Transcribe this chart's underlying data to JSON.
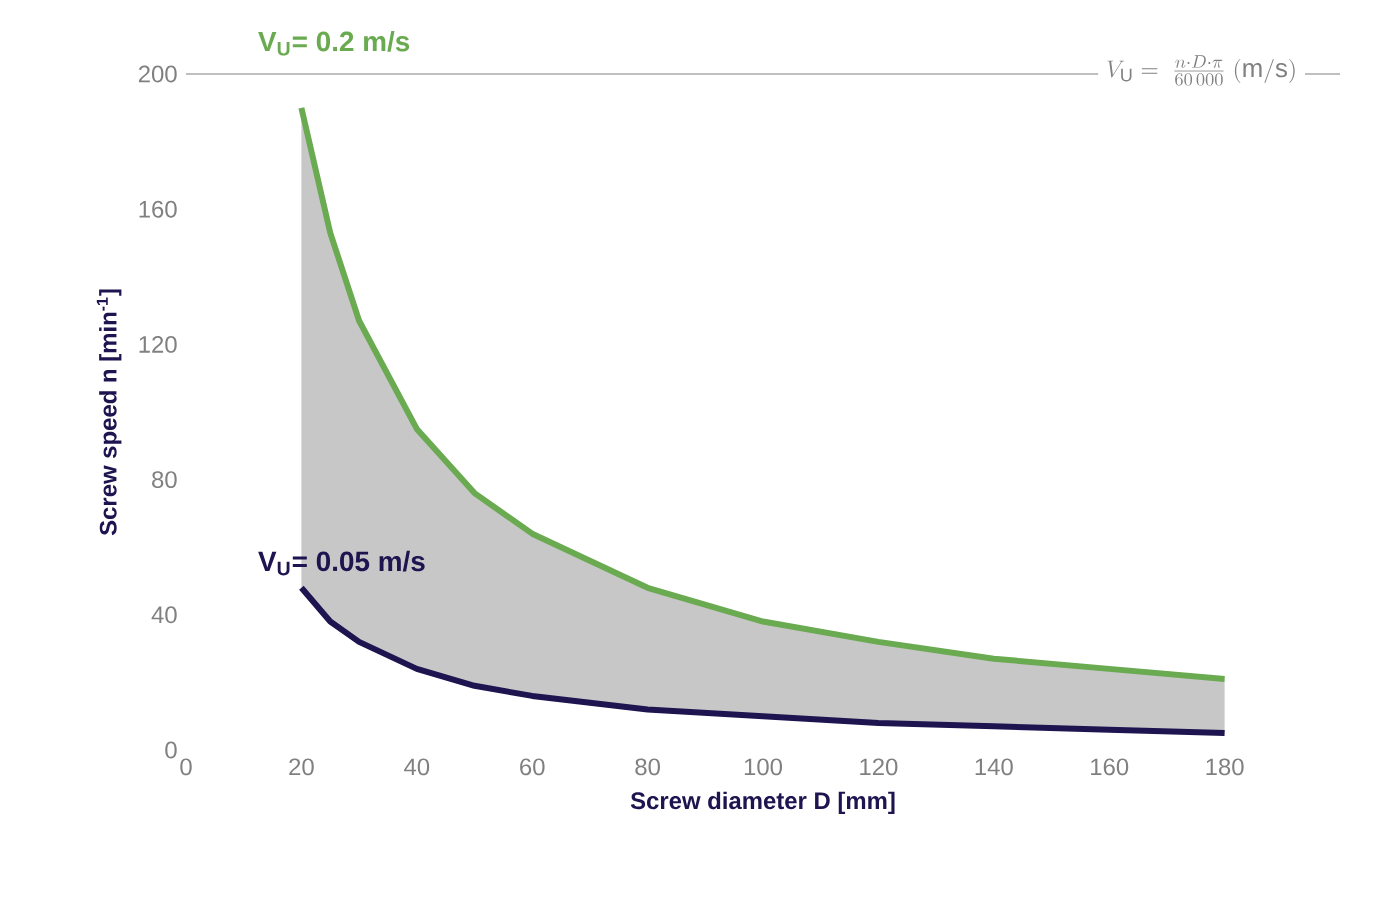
{
  "chart_data": {
    "type": "line",
    "xlabel": "Screw diameter D [mm]",
    "ylabel": "Screw speed n [min$^{-1}$]",
    "x": [
      20,
      25,
      30,
      40,
      50,
      60,
      80,
      100,
      120,
      140,
      160,
      180
    ],
    "series": [
      {
        "name": "V$_{U}$= 0.2 m/s",
        "color": "#6aaa50",
        "values": [
          190,
          153,
          127,
          95,
          76,
          64,
          48,
          38,
          32,
          27,
          24,
          21
        ],
        "lower": [
          48,
          38,
          32,
          24,
          19,
          16,
          12,
          10,
          8,
          7,
          6,
          5
        ],
        "upper": [
          190,
          153,
          127,
          95,
          76,
          64,
          48,
          38,
          32,
          27,
          24,
          21
        ]
      },
      {
        "name": "V$_{U}$= 0.05 m/s",
        "color": "#1e1450",
        "values": [
          48,
          38,
          32,
          24,
          19,
          16,
          12,
          10,
          8,
          7,
          6,
          5
        ]
      }
    ],
    "annotations": [
      "V_{\\mathrm{U}}=\\;\\frac{n\\cdot D\\cdot \\pi}{60\\,000}\\;\\mathrm{(m/s)}"
    ],
    "xlim": [
      0,
      200
    ],
    "ylim": [
      0,
      200
    ],
    "xticks": [
      0,
      20,
      40,
      60,
      80,
      100,
      120,
      140,
      160,
      180
    ],
    "yticks": [
      0,
      40,
      80,
      120,
      160,
      200
    ],
    "grid": false,
    "marker": "none",
    "line_style": "solid"
  }
}
